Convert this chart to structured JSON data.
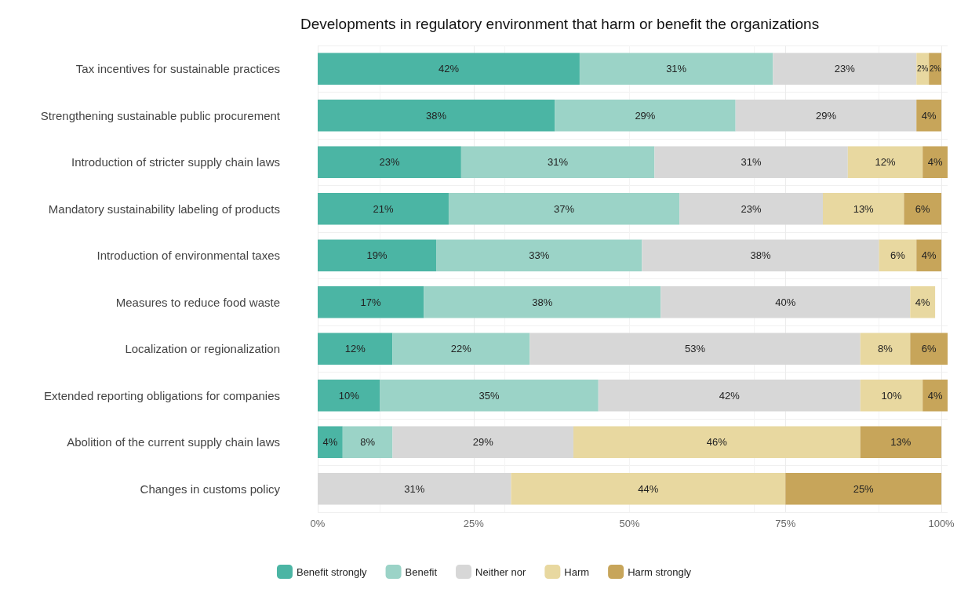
{
  "chart_data": {
    "type": "bar",
    "orientation": "horizontal",
    "stacked": true,
    "title": "Developments in regulatory environment that harm or benefit the organizations",
    "categories": [
      "Tax incentives for sustainable practices",
      "Strengthening sustainable public procurement",
      "Introduction of stricter supply chain laws",
      "Mandatory sustainability labeling of products",
      "Introduction of environmental taxes",
      "Measures to reduce food waste",
      "Localization or regionalization",
      "Extended reporting obligations for companies",
      "Abolition of the current supply chain laws",
      "Changes in customs policy"
    ],
    "series": [
      {
        "name": "Benefit strongly",
        "color": "#4bb5a4",
        "values": [
          42,
          38,
          23,
          21,
          19,
          17,
          12,
          10,
          4,
          null
        ],
        "value_labels": [
          "42%",
          "38%",
          "23%",
          "21%",
          "19%",
          "17%",
          "12%",
          "10%",
          "4%",
          null
        ]
      },
      {
        "name": "Benefit",
        "color": "#9bd3c7",
        "values": [
          31,
          29,
          31,
          37,
          33,
          38,
          22,
          35,
          8,
          null
        ],
        "value_labels": [
          "31%",
          "29%",
          "31%",
          "37%",
          "33%",
          "38%",
          "22%",
          "35%",
          "8%",
          null
        ]
      },
      {
        "name": "Neither nor",
        "color": "#d7d7d7",
        "values": [
          23,
          29,
          31,
          23,
          38,
          40,
          53,
          42,
          29,
          31
        ],
        "value_labels": [
          "23%",
          "29%",
          "31%",
          "23%",
          "38%",
          "40%",
          "53%",
          "42%",
          "29%",
          "31%"
        ]
      },
      {
        "name": "Harm",
        "color": "#e8d8a0",
        "values": [
          2,
          null,
          12,
          13,
          6,
          4,
          8,
          10,
          46,
          44
        ],
        "value_labels": [
          "2%",
          null,
          "12%",
          "13%",
          "6%",
          "4%",
          "8%",
          "10%",
          "46%",
          "44%"
        ]
      },
      {
        "name": "Harm strongly",
        "color": "#c7a55a",
        "values": [
          2,
          4,
          4,
          6,
          4,
          null,
          6,
          4,
          13,
          25
        ],
        "value_labels": [
          "2%",
          "4%",
          "4%",
          "6%",
          "4%",
          null,
          "6%",
          "4%",
          "13%",
          "25%"
        ]
      }
    ],
    "xlim": [
      0,
      101
    ],
    "xticks": [
      {
        "value": 0,
        "label": "0%"
      },
      {
        "value": 25,
        "label": "25%"
      },
      {
        "value": 50,
        "label": "50%"
      },
      {
        "value": 75,
        "label": "75%"
      },
      {
        "value": 100,
        "label": "100%"
      }
    ],
    "grid": true,
    "legend": "bottom"
  }
}
